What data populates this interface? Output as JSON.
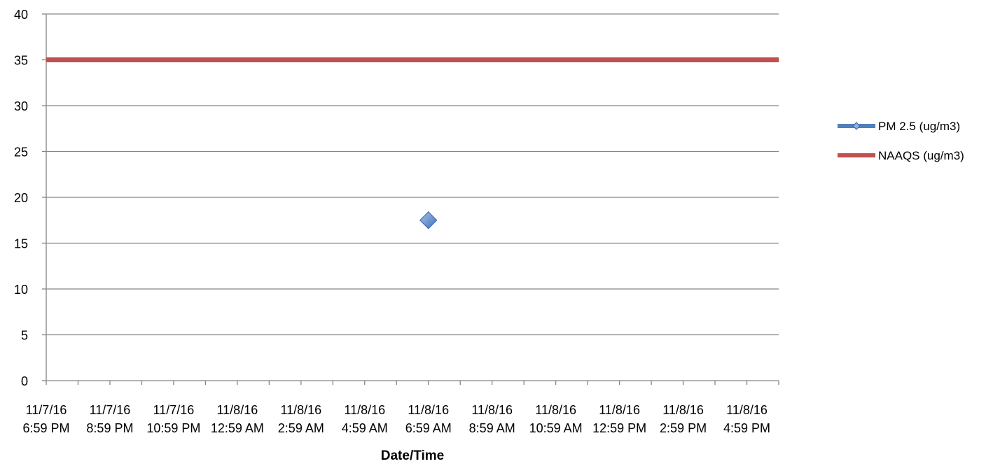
{
  "chart_data": {
    "type": "line",
    "title": "",
    "xlabel": "Date/Time",
    "ylabel": "",
    "ylim": [
      0,
      40
    ],
    "yticks": [
      0,
      5,
      10,
      15,
      20,
      25,
      30,
      35,
      40
    ],
    "grid": true,
    "legend_position": "right",
    "x_tick_labels": [
      [
        "11/7/16",
        "6:59 PM"
      ],
      [
        "11/7/16",
        "8:59 PM"
      ],
      [
        "11/7/16",
        "10:59 PM"
      ],
      [
        "11/8/16",
        "12:59 AM"
      ],
      [
        "11/8/16",
        "2:59 AM"
      ],
      [
        "11/8/16",
        "4:59 AM"
      ],
      [
        "11/8/16",
        "6:59 AM"
      ],
      [
        "11/8/16",
        "8:59 AM"
      ],
      [
        "11/8/16",
        "10:59 AM"
      ],
      [
        "11/8/16",
        "12:59 PM"
      ],
      [
        "11/8/16",
        "2:59 PM"
      ],
      [
        "11/8/16",
        "4:59 PM"
      ]
    ],
    "x_range_hours": [
      0,
      23
    ],
    "series": [
      {
        "name": "PM 2.5 (ug/m3)",
        "color": "#4f81bd",
        "marker": "diamond",
        "points": [
          {
            "x_hours": 12,
            "y": 17.5
          }
        ]
      },
      {
        "name": "NAAQS (ug/m3)",
        "color": "#c0504d",
        "marker": "none",
        "points": [
          {
            "x_hours": 0,
            "y": 35
          },
          {
            "x_hours": 23,
            "y": 35
          }
        ]
      }
    ]
  }
}
